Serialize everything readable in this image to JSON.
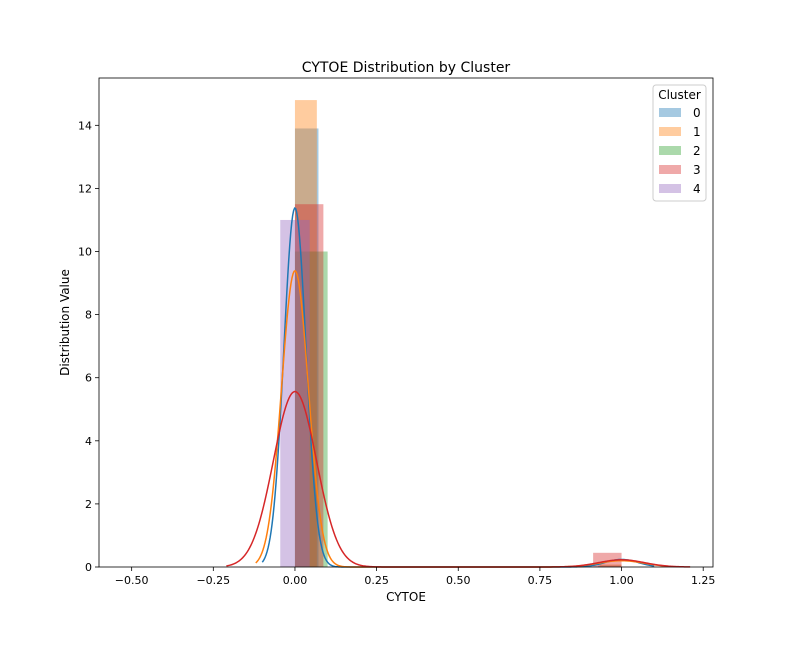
{
  "chart_data": {
    "type": "histogram-kde",
    "title": "CYTOE Distribution by Cluster",
    "xlabel": "CYTOE",
    "ylabel": "Distribution Value",
    "xlim": [
      -0.6,
      1.28
    ],
    "ylim": [
      0,
      15.5
    ],
    "xticks": [
      -0.5,
      -0.25,
      0.0,
      0.25,
      0.5,
      0.75,
      1.0,
      1.25
    ],
    "xtick_labels": [
      "−0.50",
      "−0.25",
      "0.00",
      "0.25",
      "0.50",
      "0.75",
      "1.00",
      "1.25"
    ],
    "yticks": [
      0,
      2,
      4,
      6,
      8,
      10,
      12,
      14
    ],
    "ytick_labels": [
      "0",
      "2",
      "4",
      "6",
      "8",
      "10",
      "12",
      "14"
    ],
    "grid": false,
    "legend": {
      "title": "Cluster",
      "placement": "top-right"
    },
    "series": [
      {
        "name": "0",
        "color": "#1f77b4",
        "bars": [
          {
            "x0": 0.0,
            "x1": 0.072,
            "height": 13.9
          },
          {
            "x0": 0.928,
            "x1": 1.0,
            "height": 0.05
          }
        ],
        "kde": {
          "mu1": 0.0,
          "sigma1": 0.034,
          "w1": 0.97,
          "mu2": 1.0,
          "sigma2": 0.05,
          "w2": 0.03,
          "xmin": -0.1,
          "xmax": 1.1
        }
      },
      {
        "name": "1",
        "color": "#ff7f0e",
        "bars": [
          {
            "x0": 0.0,
            "x1": 0.067,
            "height": 14.8
          },
          {
            "x0": 0.933,
            "x1": 1.0,
            "height": 0.08
          }
        ],
        "kde": {
          "mu1": 0.0,
          "sigma1": 0.041,
          "w1": 0.965,
          "mu2": 1.0,
          "sigma2": 0.07,
          "w2": 0.035,
          "xmin": -0.12,
          "xmax": 1.15
        }
      },
      {
        "name": "2",
        "color": "#2ca02c",
        "bars": [
          {
            "x0": 0.0,
            "x1": 0.1,
            "height": 10.0
          }
        ],
        "kde": null
      },
      {
        "name": "3",
        "color": "#d62728",
        "bars": [
          {
            "x0": 0.0,
            "x1": 0.087,
            "height": 11.5
          },
          {
            "x0": 0.913,
            "x1": 1.0,
            "height": 0.45
          }
        ],
        "kde": {
          "mu1": 0.0,
          "sigma1": 0.066,
          "w1": 0.92,
          "mu2": 1.0,
          "sigma2": 0.07,
          "w2": 0.04,
          "xmin": -0.21,
          "xmax": 1.21
        }
      },
      {
        "name": "4",
        "color": "#9467bd",
        "bars": [
          {
            "x0": -0.045,
            "x1": 0.045,
            "height": 11.0
          }
        ],
        "kde": null
      }
    ]
  }
}
